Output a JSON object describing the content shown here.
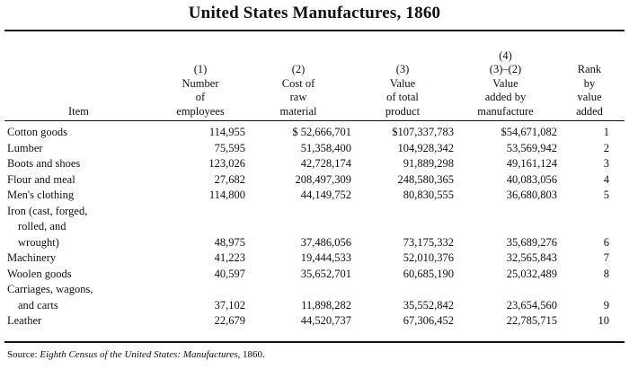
{
  "title": "United States Manufactures, 1860",
  "columns": [
    {
      "lines": [
        "Item"
      ]
    },
    {
      "lines": [
        "(1)",
        "Number",
        "of",
        "employees"
      ]
    },
    {
      "lines": [
        "(2)",
        "Cost of",
        "raw",
        "material"
      ]
    },
    {
      "lines": [
        "(3)",
        "Value",
        "of total",
        "product"
      ]
    },
    {
      "lines": [
        "(4)",
        "(3)–(2)",
        "Value",
        "added by",
        "manufacture"
      ]
    },
    {
      "lines": [
        "Rank",
        "by",
        "value",
        "added"
      ]
    }
  ],
  "rows": [
    {
      "item": [
        "Cotton goods"
      ],
      "employees": "114,955",
      "cost": "$ 52,666,701",
      "value": "$107,337,783",
      "added": "$54,671,082",
      "rank": "1"
    },
    {
      "item": [
        "Lumber"
      ],
      "employees": "75,595",
      "cost": "51,358,400",
      "value": "104,928,342",
      "added": "53,569,942",
      "rank": "2"
    },
    {
      "item": [
        "Boots and shoes"
      ],
      "employees": "123,026",
      "cost": "42,728,174",
      "value": "91,889,298",
      "added": "49,161,124",
      "rank": "3"
    },
    {
      "item": [
        "Flour and meal"
      ],
      "employees": "27,682",
      "cost": "208,497,309",
      "value": "248,580,365",
      "added": "40,083,056",
      "rank": "4"
    },
    {
      "item": [
        "Men's clothing"
      ],
      "employees": "114,800",
      "cost": "44,149,752",
      "value": "80,830,555",
      "added": "36,680,803",
      "rank": "5"
    },
    {
      "item": [
        "Iron (cast, forged,",
        "rolled, and",
        "wrought)"
      ],
      "employees": "48,975",
      "cost": "37,486,056",
      "value": "73,175,332",
      "added": "35,689,276",
      "rank": "6"
    },
    {
      "item": [
        "Machinery"
      ],
      "employees": "41,223",
      "cost": "19,444,533",
      "value": "52,010,376",
      "added": "32,565,843",
      "rank": "7"
    },
    {
      "item": [
        "Woolen goods"
      ],
      "employees": "40,597",
      "cost": "35,652,701",
      "value": "60,685,190",
      "added": "25,032,489",
      "rank": "8"
    },
    {
      "item": [
        "Carriages, wagons,",
        "and carts"
      ],
      "employees": "37,102",
      "cost": "11,898,282",
      "value": "35,552,842",
      "added": "23,654,560",
      "rank": "9"
    },
    {
      "item": [
        "Leather"
      ],
      "employees": "22,679",
      "cost": "44,520,737",
      "value": "67,306,452",
      "added": "22,785,715",
      "rank": "10"
    }
  ],
  "source": {
    "prefix": "Source: ",
    "italic": "Eighth Census of the United States: Manufactures",
    "suffix": ", 1860."
  }
}
